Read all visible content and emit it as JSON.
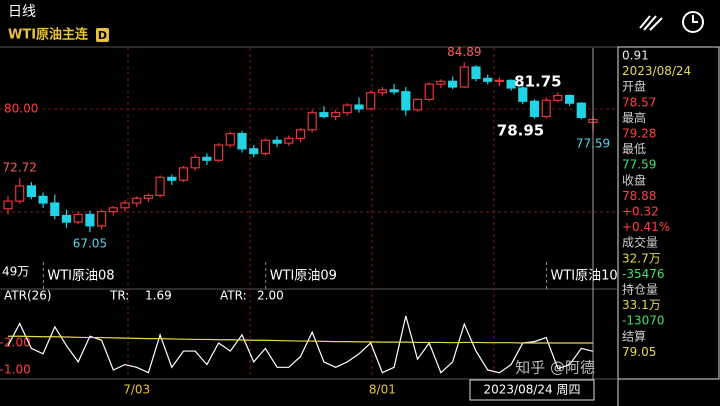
{
  "header": {
    "period": "日线",
    "symbol": "WTI原油主连",
    "badge": "D"
  },
  "info": [
    {
      "text": "0.91",
      "color": "#e8e8e8"
    },
    {
      "text": "2023/08/24",
      "color": "#e8d84a"
    },
    {
      "text": "开盘",
      "color": "#cfcfcf"
    },
    {
      "text": "78.57",
      "color": "#ff4040"
    },
    {
      "text": "最高",
      "color": "#cfcfcf"
    },
    {
      "text": "79.28",
      "color": "#ff4040"
    },
    {
      "text": "最低",
      "color": "#cfcfcf"
    },
    {
      "text": "77.59",
      "color": "#3ee06a"
    },
    {
      "text": "收盘",
      "color": "#cfcfcf"
    },
    {
      "text": "78.88",
      "color": "#ff4040"
    },
    {
      "text": "+0.32",
      "color": "#ff4040"
    },
    {
      "text": "+0.41%",
      "color": "#ff4040"
    },
    {
      "text": "成交量",
      "color": "#cfcfcf"
    },
    {
      "text": "32.7万",
      "color": "#e8d84a"
    },
    {
      "text": "-35476",
      "color": "#3ee06a"
    },
    {
      "text": "持仓量",
      "color": "#cfcfcf"
    },
    {
      "text": "33.1万",
      "color": "#e8d84a"
    },
    {
      "text": "-13070",
      "color": "#3ee06a"
    },
    {
      "text": "结算",
      "color": "#cfcfcf"
    },
    {
      "text": "79.05",
      "color": "#e8d84a"
    }
  ],
  "contracts": [
    {
      "label": "WTI原油08",
      "index": 2
    },
    {
      "label": "WTI原油09",
      "index": 21
    },
    {
      "label": "WTI原油10",
      "index": 45
    }
  ],
  "volume_mark": "49万",
  "cursor_date": "2023/08/24 周四",
  "watermark": "知乎 @阿德",
  "chart_data": [
    {
      "type": "candlestick",
      "up_color": "#e8343a",
      "down_color": "#22d3e6",
      "categories": [
        null,
        null,
        null,
        null,
        null,
        null,
        null,
        null,
        null,
        null,
        null,
        "7/03",
        null,
        null,
        null,
        null,
        null,
        null,
        null,
        null,
        null,
        null,
        null,
        null,
        null,
        null,
        null,
        null,
        null,
        null,
        null,
        null,
        "8/01",
        null,
        null,
        null,
        null,
        null,
        null,
        null,
        null,
        null,
        null,
        null,
        null,
        null,
        null,
        null,
        null,
        null,
        null
      ],
      "open": [
        69.5,
        70.3,
        71.9,
        70.8,
        70.1,
        68.8,
        68.1,
        68.9,
        67.7,
        69.2,
        69.6,
        70.1,
        70.6,
        70.9,
        72.8,
        72.5,
        73.8,
        74.9,
        74.6,
        76.2,
        77.4,
        75.8,
        75.3,
        76.7,
        76.4,
        76.9,
        77.8,
        79.6,
        79.2,
        79.6,
        80.4,
        80.0,
        81.7,
        82.0,
        81.8,
        79.9,
        81.0,
        82.6,
        82.9,
        82.3,
        84.4,
        83.2,
        82.9,
        83.0,
        82.2,
        80.8,
        79.2,
        80.9,
        81.4,
        80.6,
        78.57
      ],
      "high": [
        70.8,
        72.72,
        72.3,
        71.2,
        71.0,
        69.4,
        69.2,
        69.3,
        69.4,
        69.8,
        70.4,
        70.8,
        71.1,
        73.0,
        73.1,
        74.0,
        75.2,
        75.3,
        76.4,
        77.6,
        77.7,
        76.2,
        76.9,
        77.1,
        77.2,
        78.0,
        79.9,
        80.3,
        79.9,
        80.6,
        81.2,
        81.9,
        82.3,
        82.6,
        82.3,
        81.1,
        82.8,
        83.1,
        83.4,
        84.89,
        84.6,
        83.6,
        83.3,
        83.1,
        82.5,
        81.0,
        81.2,
        81.75,
        81.5,
        80.7,
        79.28
      ],
      "low": [
        68.9,
        70.0,
        70.5,
        69.6,
        68.4,
        67.5,
        67.9,
        67.05,
        67.3,
        68.8,
        69.2,
        69.7,
        70.2,
        70.7,
        72.0,
        72.3,
        73.5,
        74.1,
        74.4,
        75.9,
        75.4,
        74.9,
        75.1,
        76.0,
        76.1,
        76.5,
        77.5,
        79.0,
        78.8,
        79.3,
        79.6,
        79.9,
        81.4,
        81.5,
        79.3,
        79.7,
        80.8,
        82.2,
        82.1,
        82.2,
        82.9,
        82.6,
        82.4,
        81.9,
        80.5,
        78.95,
        79.0,
        80.7,
        80.3,
        78.9,
        77.59
      ],
      "close": [
        70.3,
        71.9,
        70.8,
        70.1,
        68.8,
        68.1,
        68.9,
        67.7,
        69.2,
        69.6,
        70.1,
        70.6,
        70.9,
        72.8,
        72.5,
        73.8,
        74.9,
        74.6,
        76.2,
        77.4,
        75.8,
        75.3,
        76.7,
        76.4,
        76.9,
        77.8,
        79.6,
        79.2,
        79.6,
        80.4,
        80.0,
        81.7,
        82.0,
        81.8,
        79.9,
        81.0,
        82.6,
        82.9,
        82.3,
        84.4,
        83.2,
        82.9,
        83.0,
        82.2,
        80.8,
        79.2,
        80.9,
        81.4,
        80.6,
        79.1,
        78.88
      ],
      "annotations": [
        {
          "index": 1,
          "field": "high"
        },
        {
          "index": 7,
          "field": "low"
        },
        {
          "index": 39,
          "field": "high"
        },
        {
          "index": 47,
          "field": "high"
        },
        {
          "index": 45,
          "field": "low"
        },
        {
          "index": 50,
          "field": "low"
        }
      ],
      "ylim": [
        63.9,
        86.4
      ],
      "yticks": [
        {
          "value": 80,
          "label": "80.00"
        }
      ],
      "grid": true
    },
    {
      "type": "line",
      "title": "ATR(26)",
      "series": [
        {
          "name": "TR:",
          "color": "#ffffff",
          "last_label": "1.69",
          "values": [
            1.9,
            2.72,
            1.8,
            1.6,
            2.6,
            1.9,
            1.3,
            2.25,
            2.1,
            1.0,
            1.2,
            1.1,
            0.9,
            2.3,
            1.1,
            1.7,
            1.7,
            1.2,
            2.0,
            1.7,
            2.3,
            1.3,
            1.8,
            1.1,
            1.1,
            1.5,
            2.4,
            1.3,
            1.1,
            1.3,
            1.6,
            2.0,
            0.9,
            1.1,
            3.0,
            1.4,
            2.0,
            0.9,
            1.3,
            2.7,
            1.7,
            1.0,
            0.9,
            1.2,
            2.0,
            2.05,
            2.2,
            1.05,
            1.2,
            1.8,
            1.69
          ]
        },
        {
          "name": "ATR:",
          "color": "#e8d84a",
          "last_label": "2.00",
          "values": [
            2.25,
            2.25,
            2.24,
            2.23,
            2.23,
            2.22,
            2.21,
            2.2,
            2.2,
            2.19,
            2.18,
            2.17,
            2.16,
            2.16,
            2.15,
            2.14,
            2.13,
            2.13,
            2.12,
            2.12,
            2.11,
            2.1,
            2.1,
            2.09,
            2.08,
            2.07,
            2.07,
            2.06,
            2.05,
            2.05,
            2.04,
            2.04,
            2.03,
            2.03,
            2.03,
            2.02,
            2.02,
            2.02,
            2.01,
            2.02,
            2.02,
            2.01,
            2.01,
            2.01,
            2.0,
            2.0,
            2.0,
            2.0,
            2.0,
            2.0,
            2.0
          ]
        }
      ],
      "ylim": [
        0.63,
        3.59
      ],
      "yticks": [
        {
          "value": 2,
          "label": "2.00"
        },
        {
          "value": 1,
          "label": "1.00"
        }
      ]
    }
  ]
}
